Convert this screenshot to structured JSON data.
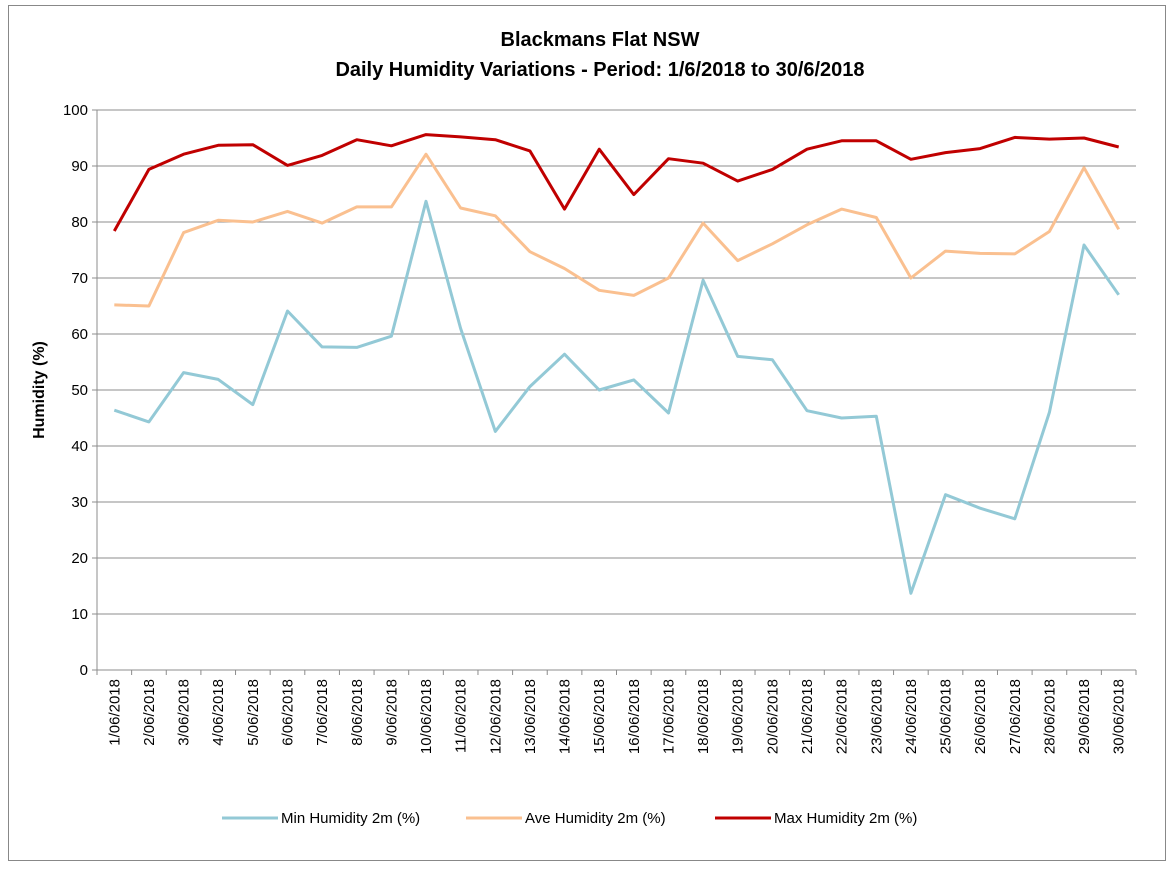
{
  "chart_data": {
    "type": "line",
    "title": "Blackmans Flat NSW",
    "subtitle": "Daily Humidity Variations - Period: 1/6/2018 to 30/6/2018",
    "y_label": "Humidity (%)",
    "categories": [
      "1/06/2018",
      "2/06/2018",
      "3/06/2018",
      "4/06/2018",
      "5/06/2018",
      "6/06/2018",
      "7/06/2018",
      "8/06/2018",
      "9/06/2018",
      "10/06/2018",
      "11/06/2018",
      "12/06/2018",
      "13/06/2018",
      "14/06/2018",
      "15/06/2018",
      "16/06/2018",
      "17/06/2018",
      "18/06/2018",
      "19/06/2018",
      "20/06/2018",
      "21/06/2018",
      "22/06/2018",
      "23/06/2018",
      "24/06/2018",
      "25/06/2018",
      "26/06/2018",
      "27/06/2018",
      "28/06/2018",
      "29/06/2018",
      "30/06/2018"
    ],
    "series": [
      {
        "name": "Min Humidity 2m (%)",
        "color": "#93c9d6",
        "values": [
          46.4,
          44.3,
          53.1,
          51.9,
          47.4,
          64.1,
          57.7,
          57.6,
          59.6,
          83.7,
          61,
          42.6,
          50.6,
          56.4,
          50,
          51.8,
          45.9,
          69.6,
          56,
          55.4,
          46.3,
          45,
          45.3,
          13.7,
          31.3,
          28.9,
          27,
          46,
          75.9,
          67
        ]
      },
      {
        "name": "Ave Humidity 2m (%)",
        "color": "#fac090",
        "values": [
          65.2,
          65,
          78.1,
          80.3,
          80,
          81.9,
          79.8,
          82.7,
          82.7,
          92.1,
          82.5,
          81.1,
          74.7,
          71.7,
          67.8,
          66.9,
          70,
          79.8,
          73.1,
          76.1,
          79.5,
          82.3,
          80.8,
          70,
          74.8,
          74.4,
          74.3,
          78.3,
          89.7,
          78.7
        ]
      },
      {
        "name": "Max Humidity 2m (%)",
        "color": "#c00000",
        "values": [
          78.4,
          89.4,
          92.1,
          93.7,
          93.8,
          90.1,
          91.9,
          94.7,
          93.6,
          95.6,
          95.2,
          94.7,
          92.7,
          82.3,
          93,
          84.9,
          91.3,
          90.5,
          87.3,
          89.4,
          93,
          94.5,
          94.5,
          91.2,
          92.4,
          93.1,
          95.1,
          94.8,
          95,
          93.4
        ]
      }
    ],
    "ylim": [
      0,
      100
    ],
    "yticks": [
      0,
      10,
      20,
      30,
      40,
      50,
      60,
      70,
      80,
      90,
      100
    ],
    "grid": true,
    "legend": "bottom"
  }
}
